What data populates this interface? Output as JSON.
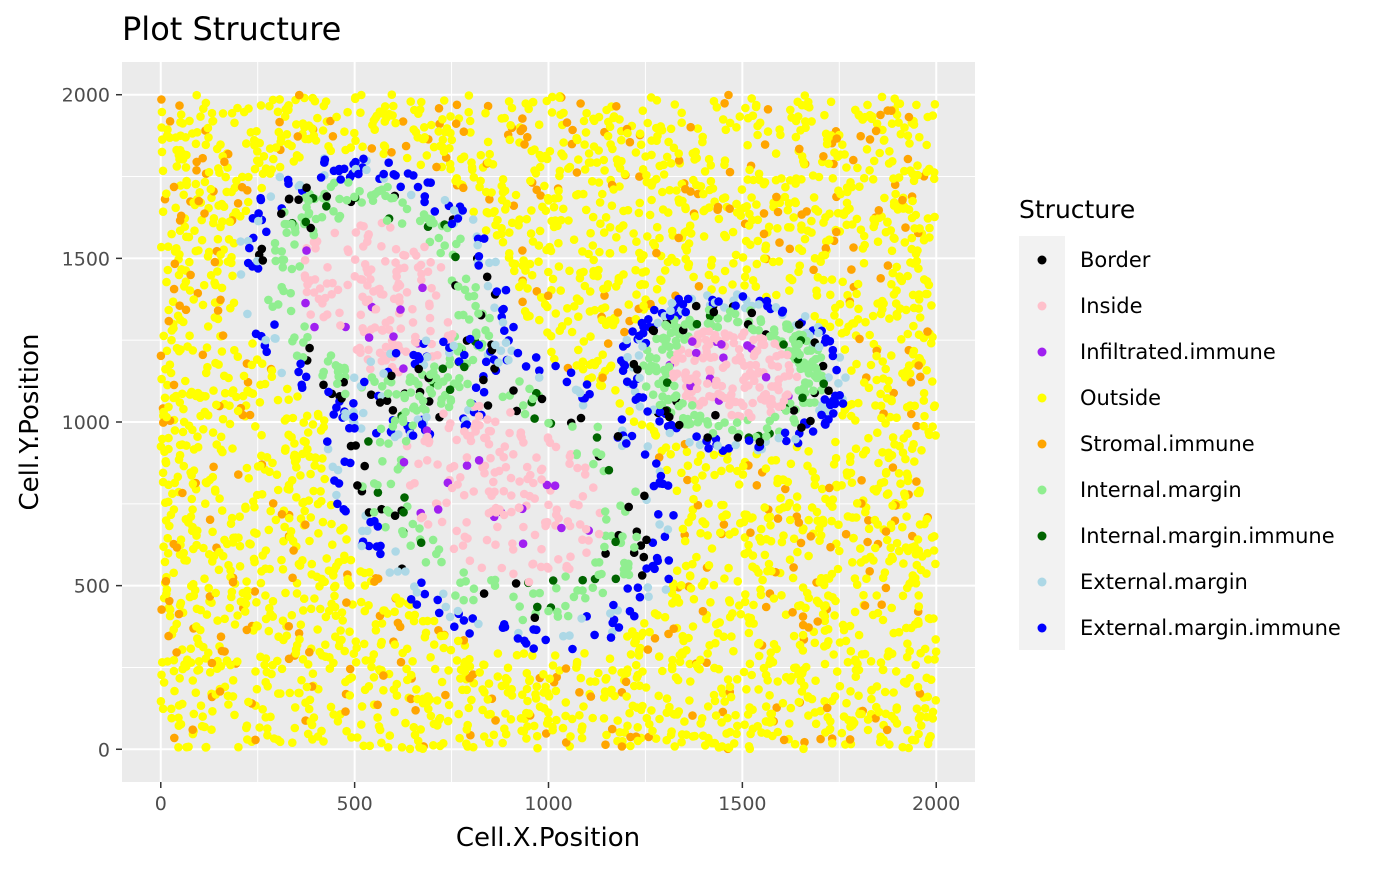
{
  "chart_data": {
    "type": "scatter",
    "title": "Plot  Structure",
    "xlabel": "Cell.X.Position",
    "ylabel": "Cell.Y.Position",
    "xlim": [
      -100,
      2100
    ],
    "ylim": [
      -100,
      2100
    ],
    "xticks": [
      0,
      500,
      1000,
      1500,
      2000
    ],
    "yticks": [
      0,
      500,
      1000,
      1500,
      2000
    ],
    "grid": true,
    "legend": {
      "title": "Structure",
      "placement": "right",
      "entries": [
        {
          "label": "Border",
          "color": "#000000"
        },
        {
          "label": "Inside",
          "color": "#ffc0cb"
        },
        {
          "label": "Infiltrated.immune",
          "color": "#a020f0"
        },
        {
          "label": "Outside",
          "color": "#ffff00"
        },
        {
          "label": "Stromal.immune",
          "color": "#ffa500"
        },
        {
          "label": "Internal.margin",
          "color": "#90ee90"
        },
        {
          "label": "Internal.margin.immune",
          "color": "#006400"
        },
        {
          "label": "External.margin",
          "color": "#add8e6"
        },
        {
          "label": "External.margin.immune",
          "color": "#0000ff"
        }
      ]
    },
    "regions": [
      {
        "shape": "ellipse",
        "cx": 560,
        "cy": 1380,
        "rx": 280,
        "ry": 380,
        "rotation_deg": 25
      },
      {
        "shape": "ellipse",
        "cx": 880,
        "cy": 780,
        "rx": 330,
        "ry": 440,
        "rotation_deg": 40
      },
      {
        "shape": "ellipse",
        "cx": 1480,
        "cy": 1150,
        "rx": 250,
        "ry": 200,
        "rotation_deg": -15
      }
    ],
    "point_counts": {
      "background": 4200,
      "per_region": 520
    },
    "series": [
      {
        "name": "Border",
        "points_sample": [
          [
            550,
            1810
          ],
          [
            300,
            1340
          ],
          [
            650,
            1240
          ],
          [
            1300,
            820
          ],
          [
            1280,
            1210
          ]
        ]
      },
      {
        "name": "Inside",
        "points_sample": [
          [
            560,
            1400
          ],
          [
            620,
            1560
          ],
          [
            1050,
            880
          ],
          [
            780,
            640
          ],
          [
            1500,
            1150
          ]
        ]
      },
      {
        "name": "Infiltrated.immune",
        "points_sample": [
          [
            540,
            1520
          ],
          [
            1080,
            920
          ],
          [
            820,
            620
          ],
          [
            1440,
            1180
          ]
        ]
      },
      {
        "name": "Outside",
        "points_sample": [
          [
            100,
            1900
          ],
          [
            1800,
            300
          ],
          [
            1200,
            1700
          ],
          [
            300,
            100
          ],
          [
            1900,
            1000
          ]
        ]
      },
      {
        "name": "Stromal.immune",
        "points_sample": [
          [
            200,
            1500
          ],
          [
            1700,
            600
          ],
          [
            1000,
            1950
          ],
          [
            40,
            700
          ]
        ]
      },
      {
        "name": "Internal.margin",
        "points_sample": [
          [
            430,
            1500
          ],
          [
            1150,
            1050
          ],
          [
            600,
            700
          ],
          [
            1550,
            1050
          ]
        ]
      },
      {
        "name": "Internal.margin.immune",
        "points_sample": [
          [
            680,
            1300
          ],
          [
            700,
            820
          ],
          [
            1580,
            1100
          ]
        ]
      },
      {
        "name": "External.margin",
        "points_sample": [
          [
            330,
            1640
          ],
          [
            1230,
            750
          ],
          [
            1400,
            1300
          ],
          [
            420,
            520
          ]
        ]
      },
      {
        "name": "External.margin.immune",
        "points_sample": [
          [
            290,
            1400
          ],
          [
            1250,
            1150
          ],
          [
            500,
            460
          ],
          [
            1650,
            1000
          ]
        ]
      }
    ]
  }
}
